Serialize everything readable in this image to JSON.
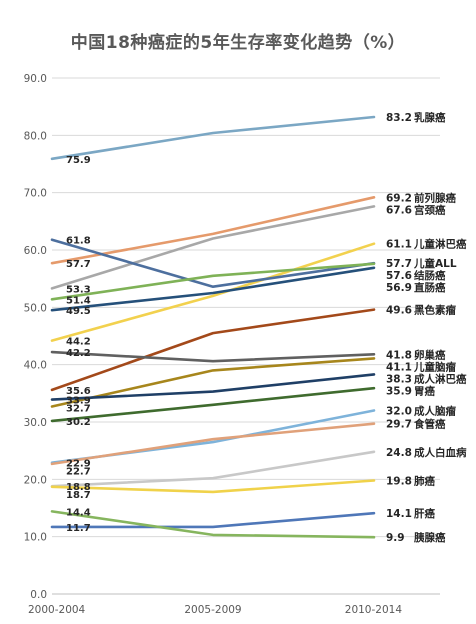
{
  "chart_data": {
    "type": "line",
    "title": "中国18种癌症的5年生存率变化趋势（%）",
    "categories": [
      "2000-2004",
      "2005-2009",
      "2010-2014"
    ],
    "ylim": [
      0,
      90
    ],
    "yticks": [
      "0.0",
      "10.0",
      "20.0",
      "30.0",
      "40.0",
      "50.0",
      "60.0",
      "70.0",
      "80.0",
      "90.0"
    ],
    "grid": true,
    "series": [
      {
        "name": "乳腺癌",
        "values": [
          75.9,
          80.4,
          83.2
        ],
        "start_label": "75.9",
        "end_label": "83.2",
        "color": "#7BA7C4"
      },
      {
        "name": "前列腺癌",
        "values": [
          57.7,
          62.8,
          69.2
        ],
        "start_label": "57.7",
        "end_label": "69.2",
        "color": "#E59A6B"
      },
      {
        "name": "宫颈癌",
        "values": [
          53.3,
          62.0,
          67.6
        ],
        "start_label": "53.3",
        "end_label": "67.6",
        "color": "#A8A8A8"
      },
      {
        "name": "儿童淋巴癌",
        "values": [
          44.2,
          52.0,
          61.1
        ],
        "start_label": "44.2",
        "end_label": "61.1",
        "color": "#F2D14E"
      },
      {
        "name": "儿童ALL",
        "values": [
          61.8,
          53.6,
          57.7
        ],
        "start_label": "61.8",
        "end_label": "57.7",
        "color": "#4D6F9E"
      },
      {
        "name": "结肠癌",
        "values": [
          51.4,
          55.5,
          57.6
        ],
        "start_label": "51.4",
        "end_label": "57.6",
        "color": "#7FB257"
      },
      {
        "name": "直肠癌",
        "values": [
          49.5,
          52.5,
          56.9
        ],
        "start_label": "49.5",
        "end_label": "56.9",
        "color": "#25507A"
      },
      {
        "name": "黑色素瘤",
        "values": [
          35.6,
          45.5,
          49.6
        ],
        "start_label": "35.6",
        "end_label": "49.6",
        "color": "#A3491A"
      },
      {
        "name": "卵巢癌",
        "values": [
          42.2,
          40.6,
          41.8
        ],
        "start_label": "42.2",
        "end_label": "41.8",
        "color": "#606060"
      },
      {
        "name": "儿童脑瘤",
        "values": [
          32.7,
          39.0,
          41.1
        ],
        "start_label": "32.7",
        "end_label": "41.1",
        "color": "#A7861C"
      },
      {
        "name": "成人淋巴癌",
        "values": [
          33.9,
          35.3,
          38.3
        ],
        "start_label": "33.9",
        "end_label": "38.3",
        "color": "#1F3F66"
      },
      {
        "name": "胃癌",
        "values": [
          30.2,
          33.0,
          35.9
        ],
        "start_label": "30.2",
        "end_label": "35.9",
        "color": "#3F6B2E"
      },
      {
        "name": "成人脑瘤",
        "values": [
          22.9,
          26.5,
          32.0
        ],
        "start_label": "22.9",
        "end_label": "32.0",
        "color": "#7EB3DA"
      },
      {
        "name": "食管癌",
        "values": [
          22.7,
          27.0,
          29.7
        ],
        "start_label": "22.7",
        "end_label": "29.7",
        "color": "#E0A17A"
      },
      {
        "name": "成人白血病",
        "values": [
          18.8,
          20.2,
          24.8
        ],
        "start_label": "18.8",
        "end_label": "24.8",
        "color": "#C8C8C8"
      },
      {
        "name": "肺癌",
        "values": [
          18.7,
          17.8,
          19.8
        ],
        "start_label": "18.7",
        "end_label": "19.8",
        "color": "#F0D24A"
      },
      {
        "name": "肝癌",
        "values": [
          11.7,
          11.7,
          14.1
        ],
        "start_label": "11.7",
        "end_label": "14.1",
        "color": "#4F77B8"
      },
      {
        "name": "胰腺癌",
        "values": [
          14.4,
          10.3,
          9.9
        ],
        "start_label": "14.4",
        "end_label": "9.9",
        "color": "#86B55E"
      }
    ]
  }
}
